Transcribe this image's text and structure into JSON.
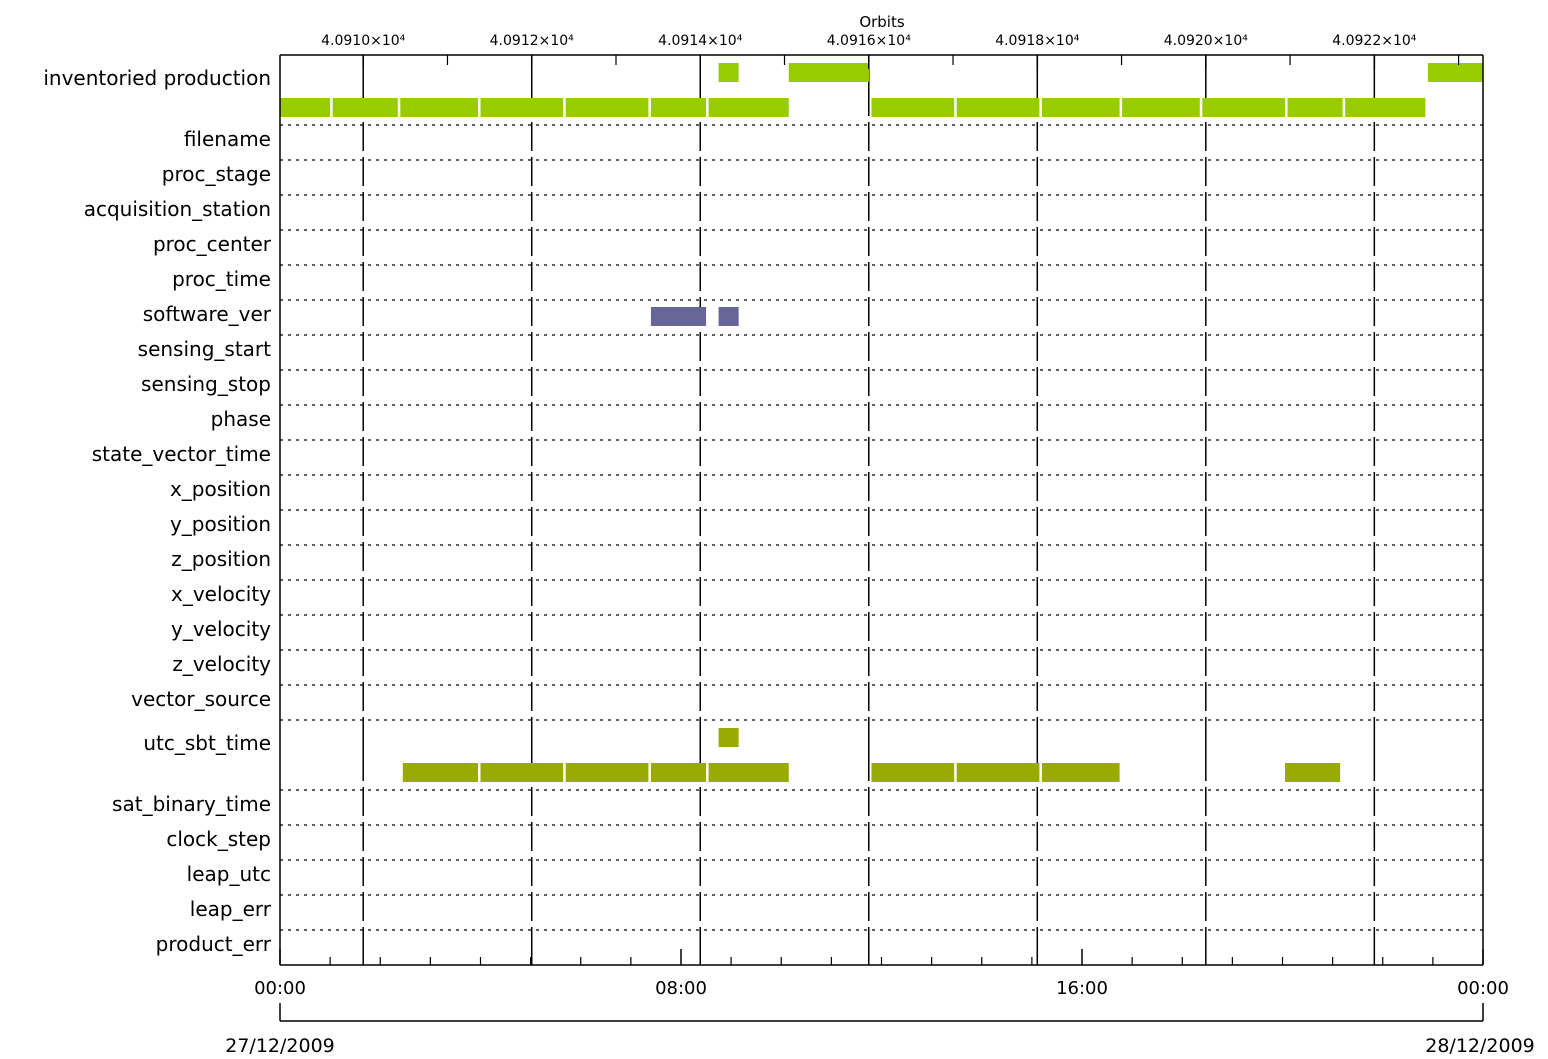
{
  "chart_data": {
    "type": "timeline",
    "top_axis": {
      "title": "Orbits",
      "tick_labels": [
        "4.0910×10⁴",
        "4.0912×10⁴",
        "4.0914×10⁴",
        "4.0916×10⁴",
        "4.0918×10⁴",
        "4.0920×10⁴",
        "4.0922×10⁴"
      ],
      "tick_values": [
        40910,
        40912,
        40914,
        40916,
        40918,
        40920,
        40922
      ],
      "minor_tick_values": [
        40911,
        40913,
        40915,
        40917,
        40919,
        40921,
        40923
      ],
      "hour_at_orbit_40910": 1.66,
      "hours_per_orbit": 1.681
    },
    "bottom_axis": {
      "unit": "hours",
      "range": [
        0,
        24
      ],
      "tick_labels": [
        "00:00",
        "08:00",
        "16:00",
        "00:00"
      ],
      "tick_hours": [
        0,
        8,
        16,
        24
      ],
      "minor_tick_hours": [
        1,
        2,
        3,
        4,
        5,
        6,
        7,
        9,
        10,
        11,
        12,
        13,
        14,
        15,
        17,
        18,
        19,
        20,
        21,
        22,
        23
      ],
      "start_date": "27/12/2009",
      "end_date": "28/12/2009"
    },
    "colors": {
      "inventory": "#99cc00",
      "software_ver": "#666699",
      "utc_sbt_time": "#99aa00"
    },
    "rows": [
      {
        "label": "inventoried production",
        "tall": true,
        "segments": [
          {
            "start": 0.0,
            "end": 1.0,
            "level": "low"
          },
          {
            "start": 1.05,
            "end": 2.35,
            "level": "low"
          },
          {
            "start": 2.4,
            "end": 3.95,
            "level": "low"
          },
          {
            "start": 4.0,
            "end": 5.65,
            "level": "low"
          },
          {
            "start": 5.7,
            "end": 7.35,
            "level": "low"
          },
          {
            "start": 7.4,
            "end": 8.5,
            "level": "low"
          },
          {
            "start": 8.55,
            "end": 10.15,
            "level": "low"
          },
          {
            "start": 8.75,
            "end": 9.15,
            "level": "high"
          },
          {
            "start": 10.15,
            "end": 11.75,
            "level": "high"
          },
          {
            "start": 11.8,
            "end": 13.45,
            "level": "low"
          },
          {
            "start": 13.5,
            "end": 15.15,
            "level": "low"
          },
          {
            "start": 15.2,
            "end": 16.75,
            "level": "low"
          },
          {
            "start": 16.8,
            "end": 18.35,
            "level": "low"
          },
          {
            "start": 18.4,
            "end": 20.05,
            "level": "low"
          },
          {
            "start": 20.1,
            "end": 21.2,
            "level": "low"
          },
          {
            "start": 21.25,
            "end": 22.85,
            "level": "low"
          },
          {
            "start": 22.9,
            "end": 24.0,
            "level": "high"
          }
        ]
      },
      {
        "label": "filename",
        "segments": []
      },
      {
        "label": "proc_stage",
        "segments": []
      },
      {
        "label": "acquisition_station",
        "segments": []
      },
      {
        "label": "proc_center",
        "segments": []
      },
      {
        "label": "proc_time",
        "segments": []
      },
      {
        "label": "software_ver",
        "segments": [
          {
            "start": 7.4,
            "end": 8.5
          },
          {
            "start": 8.75,
            "end": 9.15
          }
        ]
      },
      {
        "label": "sensing_start",
        "segments": []
      },
      {
        "label": "sensing_stop",
        "segments": []
      },
      {
        "label": "phase",
        "segments": []
      },
      {
        "label": "state_vector_time",
        "segments": []
      },
      {
        "label": "x_position",
        "segments": []
      },
      {
        "label": "y_position",
        "segments": []
      },
      {
        "label": "z_position",
        "segments": []
      },
      {
        "label": "x_velocity",
        "segments": []
      },
      {
        "label": "y_velocity",
        "segments": []
      },
      {
        "label": "z_velocity",
        "segments": []
      },
      {
        "label": "vector_source",
        "segments": []
      },
      {
        "label": "utc_sbt_time",
        "tall": true,
        "segments": [
          {
            "start": 2.45,
            "end": 3.95,
            "level": "low"
          },
          {
            "start": 4.0,
            "end": 5.65,
            "level": "low"
          },
          {
            "start": 5.7,
            "end": 7.35,
            "level": "low"
          },
          {
            "start": 7.4,
            "end": 8.5,
            "level": "low"
          },
          {
            "start": 8.55,
            "end": 10.15,
            "level": "low"
          },
          {
            "start": 8.75,
            "end": 9.15,
            "level": "high"
          },
          {
            "start": 11.8,
            "end": 13.45,
            "level": "low"
          },
          {
            "start": 13.5,
            "end": 15.15,
            "level": "low"
          },
          {
            "start": 15.2,
            "end": 16.75,
            "level": "low"
          },
          {
            "start": 20.05,
            "end": 21.15,
            "level": "low"
          }
        ]
      },
      {
        "label": "sat_binary_time",
        "segments": []
      },
      {
        "label": "clock_step",
        "segments": []
      },
      {
        "label": "leap_utc",
        "segments": []
      },
      {
        "label": "leap_err",
        "segments": []
      },
      {
        "label": "product_err",
        "segments": []
      }
    ]
  }
}
